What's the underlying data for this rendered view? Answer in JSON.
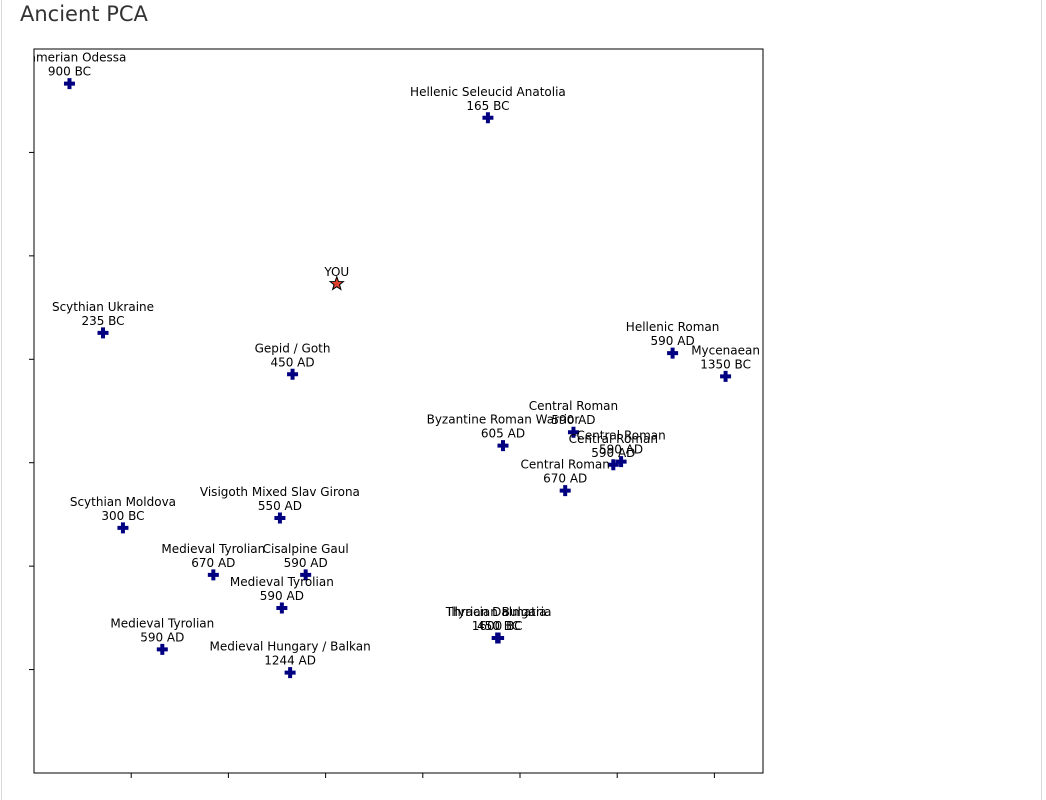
{
  "page": {
    "title": "Ancient PCA"
  },
  "chart_data": {
    "type": "scatter",
    "xlim": [
      -0.6,
      0.9
    ],
    "ylim": [
      -0.8,
      0.6
    ],
    "x_ticks": [
      -0.4,
      -0.2,
      0.0,
      0.2,
      0.4,
      0.6,
      0.8
    ],
    "y_ticks": [
      -0.6,
      -0.4,
      -0.2,
      0.0,
      0.2,
      0.4
    ],
    "grid": false,
    "colors": {
      "sample": "#000080",
      "you": "#e0412c"
    },
    "points": [
      {
        "label": "Cimmerian Odessa",
        "date": "900 BC",
        "x": -0.527,
        "y": 0.533,
        "marker": "plus"
      },
      {
        "label": "Hellenic Seleucid Anatolia",
        "date": "165 BC",
        "x": 0.334,
        "y": 0.467,
        "marker": "plus"
      },
      {
        "label": "YOU",
        "date": "",
        "x": 0.023,
        "y": 0.146,
        "marker": "star"
      },
      {
        "label": "Scythian Ukraine",
        "date": "235 BC",
        "x": -0.458,
        "y": 0.051,
        "marker": "plus"
      },
      {
        "label": "Gepid / Goth",
        "date": "450 AD",
        "x": -0.068,
        "y": -0.029,
        "marker": "plus"
      },
      {
        "label": "Hellenic Roman",
        "date": "590 AD",
        "x": 0.714,
        "y": 0.012,
        "marker": "plus"
      },
      {
        "label": "Mycenaean",
        "date": "1350 BC",
        "x": 0.823,
        "y": -0.033,
        "marker": "plus"
      },
      {
        "label": "Central Roman",
        "date": "590 AD",
        "x": 0.51,
        "y": -0.141,
        "marker": "plus"
      },
      {
        "label": "Byzantine Roman Warrior",
        "date": "605 AD",
        "x": 0.365,
        "y": -0.167,
        "marker": "plus"
      },
      {
        "label": "Central Roman",
        "date": "590 AD",
        "x": 0.608,
        "y": -0.198,
        "marker": "plus"
      },
      {
        "label": "Central Roman",
        "date": "590 AD",
        "x": 0.592,
        "y": -0.204,
        "marker": "plus"
      },
      {
        "label": "Central Roman",
        "date": "670 AD",
        "x": 0.493,
        "y": -0.254,
        "marker": "plus"
      },
      {
        "label": "Scythian Moldova",
        "date": "300 BC",
        "x": -0.417,
        "y": -0.326,
        "marker": "plus"
      },
      {
        "label": "Visigoth Mixed Slav Girona",
        "date": "550 AD",
        "x": -0.094,
        "y": -0.307,
        "marker": "plus"
      },
      {
        "label": "Medieval Tyrolian",
        "date": "670 AD",
        "x": -0.231,
        "y": -0.417,
        "marker": "plus"
      },
      {
        "label": "Cisalpine Gaul",
        "date": "590 AD",
        "x": -0.041,
        "y": -0.417,
        "marker": "plus"
      },
      {
        "label": "Medieval Tyrolian",
        "date": "590 AD",
        "x": -0.09,
        "y": -0.481,
        "marker": "plus"
      },
      {
        "label": "Illyrian Dalmatia",
        "date": "1600 BC",
        "x": 0.353,
        "y": -0.539,
        "marker": "plus"
      },
      {
        "label": "Thracian Bulgaria",
        "date": "450 BC",
        "x": 0.356,
        "y": -0.539,
        "marker": "plus"
      },
      {
        "label": "Medieval Tyrolian",
        "date": "590 AD",
        "x": -0.336,
        "y": -0.561,
        "marker": "plus"
      },
      {
        "label": "Medieval Hungary / Balkan",
        "date": "1244 AD",
        "x": -0.073,
        "y": -0.606,
        "marker": "plus"
      }
    ]
  }
}
